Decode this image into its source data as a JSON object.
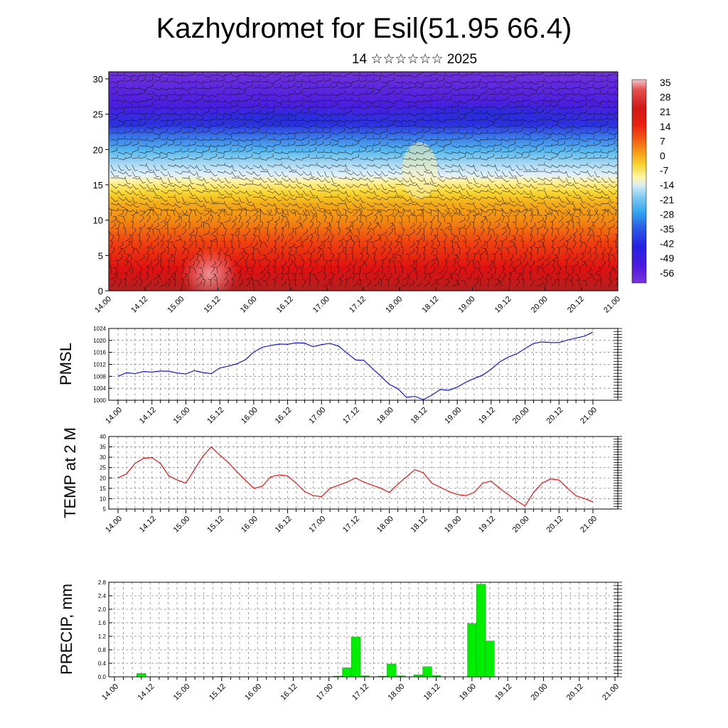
{
  "title": "Kazhydromet for Esil(51.95 66.4)",
  "subtitle": "14 ☆☆☆☆☆☆ 2025",
  "colors": {
    "pmsl": "#0000ee",
    "temp": "#ee0000",
    "precip": "#00ee00",
    "grid": "#888888"
  },
  "chart_data": [
    {
      "type": "heatmap",
      "description_of_field": "cross-section colour field with wind barbs",
      "x_ticks": [
        "14.00",
        "14.12",
        "15.00",
        "15.12",
        "16.00",
        "16.12",
        "17.00",
        "17.12",
        "18.00",
        "18.12",
        "19.00",
        "19.12",
        "20.00",
        "20.12",
        "21.00"
      ],
      "y_ticks": [
        "0",
        "5",
        "10",
        "15",
        "20",
        "25",
        "30"
      ],
      "ylim": [
        0,
        31
      ],
      "colorbar_labels": [
        "35",
        "28",
        "21",
        "14",
        "7",
        "0",
        "-7",
        "-14",
        "-21",
        "-28",
        "-35",
        "-42",
        "-49",
        "-56"
      ]
    },
    {
      "type": "line",
      "ylabel": "PMSL",
      "ylim": [
        1000,
        1024
      ],
      "y_ticks": [
        "1024",
        "1020",
        "1016",
        "1012",
        "1008",
        "1004",
        "1000"
      ],
      "x_ticks": [
        "14.00",
        "14.12",
        "15.00",
        "15.12",
        "16.00",
        "16.12",
        "17.00",
        "17.12",
        "18.00",
        "18.12",
        "19.00",
        "19.12",
        "20.00",
        "20.12",
        "21.00"
      ],
      "values": [
        1008.0,
        1009.2,
        1008.9,
        1009.6,
        1009.4,
        1009.8,
        1009.7,
        1009.1,
        1008.8,
        1009.9,
        1009.3,
        1008.9,
        1010.8,
        1011.4,
        1012.2,
        1013.5,
        1016.1,
        1017.7,
        1018.3,
        1018.8,
        1018.7,
        1019.2,
        1019.1,
        1017.9,
        1018.6,
        1019.0,
        1018.1,
        1015.8,
        1013.5,
        1013.3,
        1010.6,
        1008.0,
        1005.3,
        1003.9,
        1001.0,
        1001.3,
        1000.2,
        1001.7,
        1003.6,
        1003.3,
        1004.4,
        1006.0,
        1007.3,
        1008.4,
        1010.4,
        1012.8,
        1014.4,
        1015.5,
        1017.3,
        1019.0,
        1019.5,
        1019.3,
        1019.3,
        1020.1,
        1020.8,
        1021.4,
        1022.8
      ]
    },
    {
      "type": "line",
      "ylabel": "TEMP at 2 M",
      "ylim": [
        5,
        40
      ],
      "y_ticks": [
        "40",
        "35",
        "30",
        "25",
        "20",
        "15",
        "10",
        "5"
      ],
      "x_ticks": [
        "14.00",
        "14.12",
        "15.00",
        "15.12",
        "16.00",
        "16.12",
        "17.00",
        "17.12",
        "18.00",
        "18.12",
        "19.00",
        "19.12",
        "20.00",
        "20.12",
        "21.00"
      ],
      "values": [
        20.0,
        22.0,
        27.0,
        29.5,
        29.8,
        27.0,
        21.0,
        19.0,
        17.5,
        24.0,
        30.5,
        35.0,
        31.0,
        27.5,
        23.0,
        19.0,
        15.0,
        16.0,
        20.5,
        21.5,
        21.0,
        17.5,
        13.5,
        11.5,
        11.0,
        15.0,
        16.5,
        18.0,
        20.0,
        18.0,
        16.5,
        15.0,
        13.0,
        17.0,
        20.5,
        24.0,
        22.5,
        17.5,
        15.5,
        13.5,
        12.0,
        11.5,
        13.0,
        17.5,
        18.5,
        15.0,
        12.0,
        9.0,
        6.5,
        13.0,
        17.5,
        19.5,
        19.0,
        15.0,
        11.5,
        10.0,
        8.5
      ]
    },
    {
      "type": "bar",
      "ylabel": "PRECIP, mm",
      "ylim": [
        0,
        2.8
      ],
      "y_ticks": [
        "2.8",
        "2.4",
        "2.0",
        "1.6",
        "1.2",
        "0.8",
        "0.4",
        "0.0"
      ],
      "x_ticks": [
        "14.00",
        "14.12",
        "15.00",
        "15.12",
        "16.00",
        "16.12",
        "17.00",
        "17.12",
        "18.00",
        "18.12",
        "19.00",
        "19.12",
        "20.00",
        "20.12",
        "21.00"
      ],
      "values": [
        0,
        0,
        0,
        0.1,
        0,
        0,
        0,
        0,
        0,
        0,
        0,
        0,
        0.01,
        0,
        0,
        0,
        0,
        0,
        0,
        0,
        0,
        0,
        0,
        0,
        0,
        0.02,
        0.27,
        1.18,
        0.03,
        0,
        0.02,
        0.38,
        0.03,
        0,
        0.06,
        0.3,
        0.04,
        0,
        0,
        0,
        1.58,
        2.74,
        1.06,
        0,
        0,
        0,
        0,
        0,
        0,
        0,
        0,
        0,
        0,
        0,
        0,
        0,
        0
      ]
    }
  ]
}
